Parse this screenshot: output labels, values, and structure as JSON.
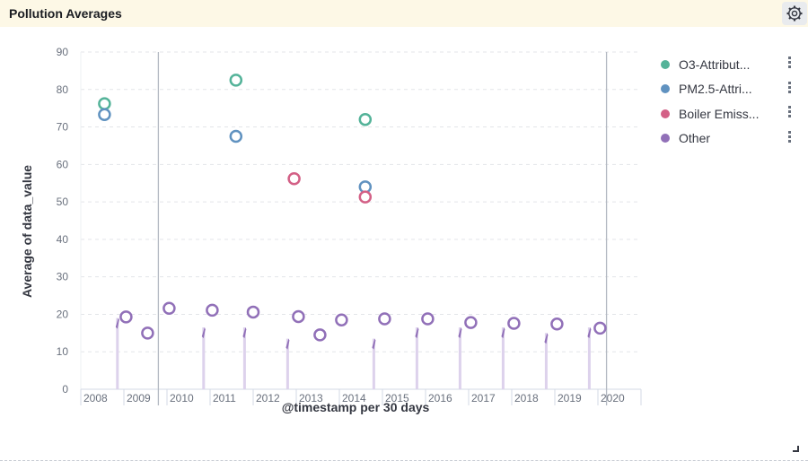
{
  "panel": {
    "title": "Pollution Averages",
    "settings_icon": "gear-icon"
  },
  "colors": {
    "o3": "#54b399",
    "pm25": "#6092c0",
    "boiler": "#d36086",
    "other": "#9170b8"
  },
  "legend": [
    {
      "label": "O3-Attribut...",
      "color": "#54b399"
    },
    {
      "label": "PM2.5-Attri...",
      "color": "#6092c0"
    },
    {
      "label": "Boiler Emiss...",
      "color": "#d36086"
    },
    {
      "label": "Other",
      "color": "#9170b8"
    }
  ],
  "chart_data": {
    "type": "scatter",
    "xlabel": "@timestamp per 30 days",
    "ylabel": "Average of data_value",
    "ylim": [
      0,
      90
    ],
    "yticks": [
      0,
      10,
      20,
      30,
      40,
      50,
      60,
      70,
      80,
      90
    ],
    "xlim": [
      2008.0,
      2021.0
    ],
    "xticks": [
      "2008",
      "2009",
      "2010",
      "2011",
      "2012",
      "2013",
      "2014",
      "2015",
      "2016",
      "2017",
      "2018",
      "2019",
      "2020"
    ],
    "grid": "horizontal dashed",
    "legend_position": "right",
    "reference_lines_x": [
      2009.8,
      2020.2
    ],
    "series": [
      {
        "name": "O3-Attributable...",
        "color": "#54b399",
        "points": [
          {
            "x": 2008.55,
            "y": 76.2
          },
          {
            "x": 2011.6,
            "y": 82.5
          },
          {
            "x": 2014.6,
            "y": 72.0
          }
        ]
      },
      {
        "name": "PM2.5-Attributable...",
        "color": "#6092c0",
        "points": [
          {
            "x": 2008.55,
            "y": 73.3
          },
          {
            "x": 2011.6,
            "y": 67.5
          },
          {
            "x": 2014.6,
            "y": 54.0
          }
        ]
      },
      {
        "name": "Boiler Emissions...",
        "color": "#d36086",
        "points": [
          {
            "x": 2012.95,
            "y": 56.2
          },
          {
            "x": 2014.6,
            "y": 51.3
          }
        ]
      },
      {
        "name": "Other",
        "color": "#9170b8",
        "points": [
          {
            "x": 2009.05,
            "y": 19.3
          },
          {
            "x": 2009.55,
            "y": 15.0
          },
          {
            "x": 2010.05,
            "y": 21.6
          },
          {
            "x": 2011.05,
            "y": 21.1
          },
          {
            "x": 2012.0,
            "y": 20.6
          },
          {
            "x": 2013.05,
            "y": 19.4
          },
          {
            "x": 2013.55,
            "y": 14.5
          },
          {
            "x": 2014.05,
            "y": 18.5
          },
          {
            "x": 2015.05,
            "y": 18.8
          },
          {
            "x": 2016.05,
            "y": 18.8
          },
          {
            "x": 2017.05,
            "y": 17.8
          },
          {
            "x": 2018.05,
            "y": 17.6
          },
          {
            "x": 2019.05,
            "y": 17.4
          },
          {
            "x": 2020.05,
            "y": 16.3
          }
        ],
        "spikes": [
          {
            "x": 2008.85,
            "y": 19.0
          },
          {
            "x": 2010.85,
            "y": 16.5
          },
          {
            "x": 2011.8,
            "y": 16.5
          },
          {
            "x": 2012.8,
            "y": 13.5
          },
          {
            "x": 2014.8,
            "y": 13.5
          },
          {
            "x": 2015.8,
            "y": 16.5
          },
          {
            "x": 2016.8,
            "y": 16.5
          },
          {
            "x": 2017.8,
            "y": 16.5
          },
          {
            "x": 2018.8,
            "y": 15.0
          },
          {
            "x": 2019.8,
            "y": 16.5
          }
        ]
      }
    ]
  }
}
